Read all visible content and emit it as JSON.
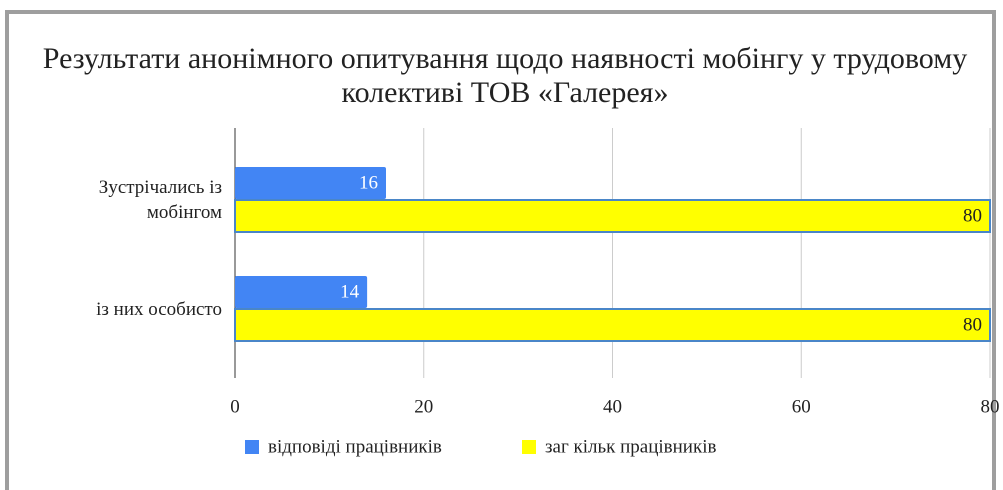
{
  "chart_data": {
    "type": "hbar",
    "title": "Результати анонімного опитування щодо наявності мобінгу у трудовому колективі ТОВ «Галерея»",
    "categories": [
      "Зустрічались із мобінгом",
      "із них особисто"
    ],
    "series": [
      {
        "name": "відповіді працівників",
        "color": "#4285f4",
        "values": [
          16,
          14
        ]
      },
      {
        "name": "заг кільк працівників",
        "color": "#ffff00",
        "values": [
          80,
          80
        ]
      }
    ],
    "xlim": [
      0,
      80
    ],
    "xticks": [
      0,
      20,
      40,
      60,
      80
    ],
    "grid": true,
    "legend": "bottom"
  }
}
